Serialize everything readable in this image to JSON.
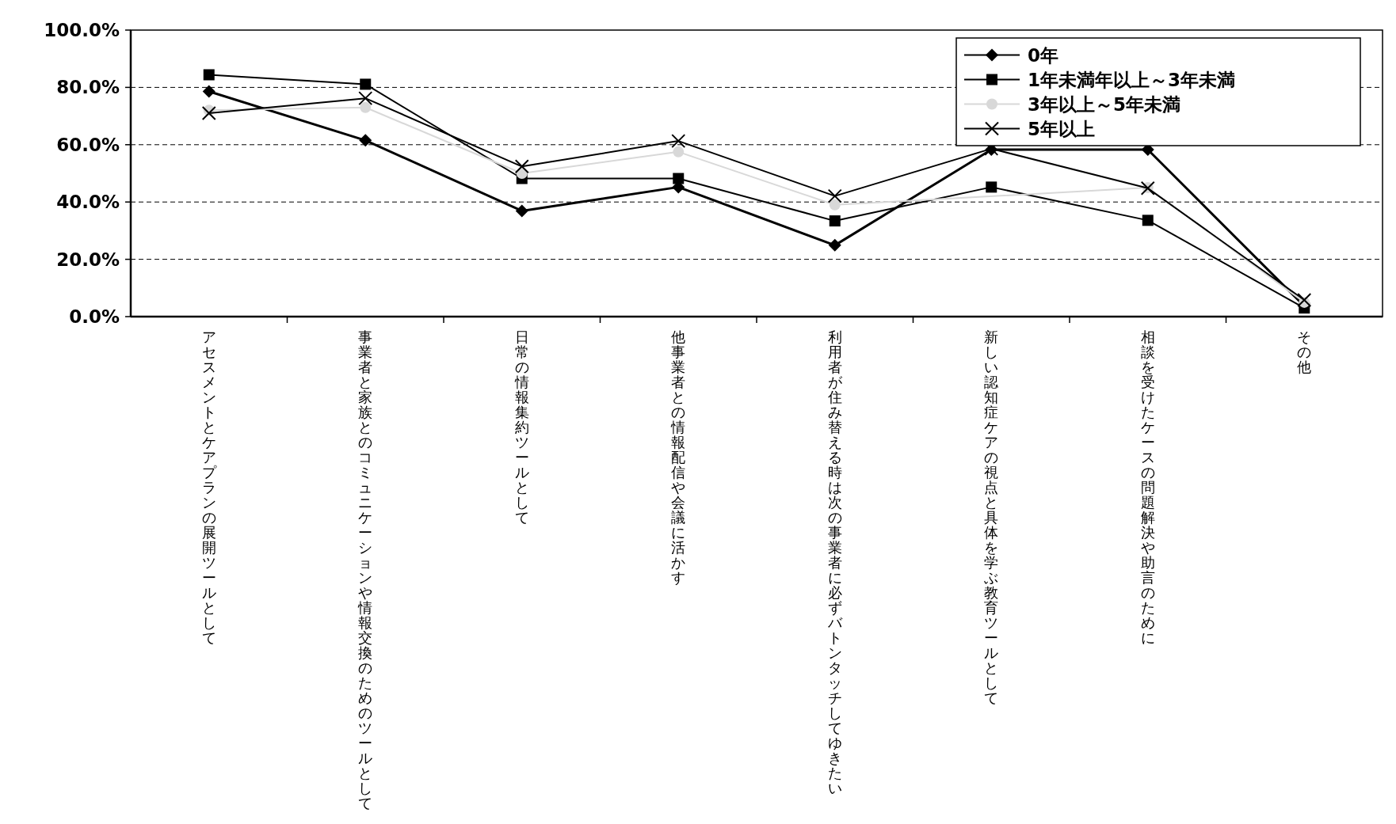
{
  "chart_data": {
    "type": "line",
    "categories": [
      "アセスメントとケアプランの展開ツールとして",
      "事業者と家族とのコミュニケーションや情報交換のためのツールとして",
      "日常の情報集約ツールとして",
      "他事業者との情報配信や会議に活かす",
      "利用者が住み替える時は次の事業者に必ずバトンタッチしてゆきたい",
      "新しい認知症ケアの視点と具体を学ぶ教育ツールとして",
      "相談を受けたケースの問題解決や助言のために",
      "その他"
    ],
    "series": [
      {
        "name": "0年",
        "color": "#000000",
        "marker": "diamond",
        "values": [
          78.6,
          61.5,
          36.9,
          45.2,
          24.9,
          58.3,
          58.3,
          3.7
        ]
      },
      {
        "name": "1年未満年以上～3年未満",
        "color": "#000000",
        "marker": "square",
        "values": [
          84.4,
          81.1,
          48.2,
          48.2,
          33.4,
          45.2,
          33.6,
          3
        ]
      },
      {
        "name": "3年以上～5年未満",
        "color": "#d8d8d8",
        "marker": "circle",
        "values": [
          72,
          73,
          50,
          57.5,
          39,
          null,
          45,
          5
        ]
      },
      {
        "name": "5年以上",
        "color": "#000000",
        "marker": "cross",
        "values": [
          71,
          76.2,
          52.4,
          61.3,
          42.1,
          58.6,
          44.8,
          5.8
        ]
      }
    ],
    "ylim": [
      0,
      100
    ],
    "yticks": [
      {
        "value": 0,
        "label": "0.0%"
      },
      {
        "value": 20,
        "label": "20.0%"
      },
      {
        "value": 40,
        "label": "40.0%"
      },
      {
        "value": 60,
        "label": "60.0%"
      },
      {
        "value": 80,
        "label": "80.0%"
      },
      {
        "value": 100,
        "label": "100.0%"
      }
    ],
    "grid": "y",
    "legend": "top right",
    "line_style": "solid"
  }
}
